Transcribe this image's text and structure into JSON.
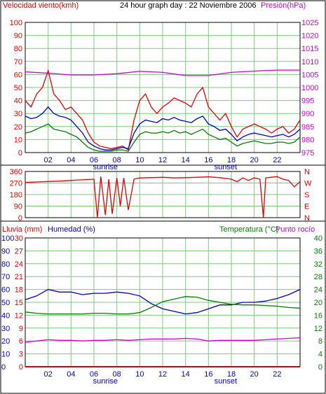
{
  "header": {
    "title": "24 hour graph day : 22 Noviembre 2006",
    "wind_label": "Velocidad viento(kmh)",
    "pressure_label": "Presión(hPa)"
  },
  "bottom_header": {
    "rain_label": "Lluvia (mm)",
    "humidity_label": "Humedad (%)",
    "temp_label": "Temperatura (°C)",
    "dew_label": "Punto rocío"
  },
  "colors": {
    "wind": "#e00000",
    "gust": "#0000c0",
    "avg": "#008000",
    "pressure": "#d000d0",
    "humidity": "#0000c0",
    "temperature": "#008000",
    "dew": "#d000d0",
    "rain": "#e00000",
    "grid": "#7ec87e"
  },
  "chart_data": [
    {
      "type": "line",
      "panel": "wind-pressure",
      "x_ticks": [
        "02",
        "04",
        "06",
        "08",
        "10",
        "12",
        "14",
        "16",
        "18",
        "20",
        "22"
      ],
      "x_markers": [
        "sunrise",
        "sunset"
      ],
      "y_left_ticks": [
        "0",
        "10",
        "20",
        "30",
        "40",
        "50",
        "60",
        "70",
        "80",
        "90",
        "100"
      ],
      "y_right_ticks": [
        "975",
        "980",
        "985",
        "990",
        "995",
        "1000",
        "1005",
        "1010",
        "1015",
        "1020",
        "1025"
      ],
      "y_left_range": [
        0,
        100
      ],
      "y_right_range": [
        975,
        1025
      ],
      "series": [
        {
          "key": "wind",
          "axis": "left",
          "x": [
            0,
            0.5,
            1,
            1.5,
            2,
            2.5,
            3,
            3.5,
            4,
            4.5,
            5,
            5.5,
            6,
            6.5,
            7,
            7.5,
            8,
            8.5,
            9,
            9.5,
            10,
            10.5,
            11,
            11.5,
            12,
            12.5,
            13,
            13.5,
            14,
            14.5,
            15,
            15.5,
            16,
            16.5,
            17,
            17.5,
            18,
            18.5,
            19,
            19.5,
            20,
            20.5,
            21,
            21.5,
            22,
            22.5,
            23,
            23.5,
            24
          ],
          "values": [
            40,
            35,
            45,
            50,
            63,
            45,
            40,
            33,
            35,
            30,
            25,
            15,
            8,
            5,
            4,
            3,
            4,
            5,
            2,
            25,
            40,
            45,
            35,
            30,
            35,
            38,
            42,
            40,
            38,
            35,
            45,
            50,
            35,
            30,
            25,
            30,
            20,
            12,
            18,
            20,
            22,
            20,
            18,
            15,
            18,
            20,
            15,
            18,
            25
          ]
        },
        {
          "key": "gust",
          "axis": "left",
          "x": [
            0,
            0.5,
            1,
            1.5,
            2,
            2.5,
            3,
            3.5,
            4,
            4.5,
            5,
            5.5,
            6,
            6.5,
            7,
            7.5,
            8,
            8.5,
            9,
            9.5,
            10,
            10.5,
            11,
            11.5,
            12,
            12.5,
            13,
            13.5,
            14,
            14.5,
            15,
            15.5,
            16,
            16.5,
            17,
            17.5,
            18,
            18.5,
            19,
            19.5,
            20,
            20.5,
            21,
            21.5,
            22,
            22.5,
            23,
            23.5,
            24
          ],
          "values": [
            28,
            26,
            27,
            30,
            35,
            30,
            28,
            27,
            25,
            20,
            15,
            8,
            5,
            3,
            2,
            2,
            3,
            4,
            3,
            15,
            22,
            25,
            24,
            23,
            26,
            25,
            27,
            25,
            24,
            23,
            26,
            28,
            22,
            20,
            17,
            18,
            14,
            9,
            12,
            14,
            15,
            14,
            13,
            12,
            13,
            14,
            12,
            14,
            18
          ]
        },
        {
          "key": "avg",
          "axis": "left",
          "x": [
            0,
            0.5,
            1,
            1.5,
            2,
            2.5,
            3,
            3.5,
            4,
            4.5,
            5,
            5.5,
            6,
            6.5,
            7,
            7.5,
            8,
            8.5,
            9,
            9.5,
            10,
            10.5,
            11,
            11.5,
            12,
            12.5,
            13,
            13.5,
            14,
            14.5,
            15,
            15.5,
            16,
            16.5,
            17,
            17.5,
            18,
            18.5,
            19,
            19.5,
            20,
            20.5,
            21,
            21.5,
            22,
            22.5,
            23,
            23.5,
            24
          ],
          "values": [
            15,
            16,
            18,
            20,
            22,
            18,
            17,
            16,
            14,
            12,
            8,
            4,
            2,
            1,
            1,
            1,
            2,
            2,
            1,
            8,
            14,
            16,
            15,
            15,
            16,
            15,
            17,
            15,
            16,
            14,
            16,
            18,
            14,
            12,
            10,
            11,
            8,
            5,
            7,
            8,
            9,
            8,
            7,
            7,
            8,
            8,
            7,
            8,
            12
          ]
        },
        {
          "key": "pressure",
          "axis": "right",
          "x": [
            0,
            2,
            4,
            6,
            8,
            10,
            12,
            14,
            16,
            18,
            20,
            22,
            24
          ],
          "values": [
            1006,
            1005.5,
            1004.8,
            1004.8,
            1005.3,
            1006.2,
            1005.8,
            1004.6,
            1004.6,
            1005.8,
            1006.3,
            1006.7,
            1006.7
          ]
        }
      ]
    },
    {
      "type": "line",
      "panel": "wind-direction",
      "y_left_ticks": [
        "360",
        "270",
        "180",
        "90",
        "0"
      ],
      "y_right_ticks": [
        "N",
        "W",
        "S",
        "E",
        "N"
      ],
      "y_range": [
        0,
        360
      ],
      "series": [
        {
          "key": "wind",
          "x": [
            0,
            1,
            2,
            3,
            4,
            5,
            6,
            6.3,
            6.6,
            7,
            7.3,
            7.6,
            8,
            8.3,
            8.6,
            9,
            9.5,
            10,
            11,
            12,
            13,
            14,
            15,
            16,
            17,
            18,
            18.5,
            19,
            19.5,
            20,
            20.5,
            20.8,
            21,
            22,
            22.5,
            23,
            23.5,
            24
          ],
          "values": [
            275,
            278,
            282,
            285,
            290,
            295,
            300,
            0,
            320,
            20,
            300,
            30,
            310,
            90,
            310,
            60,
            300,
            310,
            312,
            315,
            310,
            312,
            315,
            318,
            312,
            300,
            280,
            310,
            290,
            310,
            300,
            0,
            310,
            320,
            300,
            290,
            240,
            280
          ]
        }
      ]
    },
    {
      "type": "line",
      "panel": "humidity-temperature",
      "x_ticks": [
        "02",
        "04",
        "06",
        "08",
        "10",
        "12",
        "14",
        "16",
        "18",
        "20",
        "22"
      ],
      "x_markers": [
        "sunrise",
        "sunset"
      ],
      "y_rain_ticks": [
        "0",
        "3",
        "6",
        "9",
        "12",
        "15",
        "18",
        "21",
        "24",
        "27",
        "30"
      ],
      "y_humidity_ticks": [
        "0",
        "10",
        "20",
        "30",
        "40",
        "50",
        "60",
        "70",
        "80",
        "90",
        "100"
      ],
      "y_temp_ticks": [
        "0",
        "4",
        "8",
        "12",
        "16",
        "20",
        "24",
        "28",
        "32",
        "36",
        "40"
      ],
      "series": [
        {
          "key": "humidity",
          "axis": "humidity",
          "x": [
            0,
            1,
            2,
            3,
            4,
            5,
            6,
            7,
            8,
            9,
            10,
            11,
            12,
            13,
            14,
            15,
            16,
            17,
            18,
            19,
            20,
            21,
            22,
            23,
            24
          ],
          "values": [
            52,
            55,
            60,
            58,
            58,
            56,
            57,
            57,
            58,
            57,
            55,
            49,
            45,
            43,
            41,
            42,
            45,
            48,
            48,
            50,
            50,
            51,
            53,
            56,
            60
          ]
        },
        {
          "key": "temperature",
          "axis": "temp",
          "x": [
            0,
            1,
            2,
            3,
            4,
            5,
            6,
            7,
            8,
            9,
            10,
            11,
            12,
            13,
            14,
            15,
            16,
            17,
            18,
            19,
            20,
            21,
            22,
            23,
            24
          ],
          "values": [
            17,
            16.6,
            16.4,
            16.4,
            16.4,
            16.4,
            16.6,
            16.6,
            16.4,
            16.4,
            16.8,
            18.4,
            20.2,
            21,
            21.8,
            21.6,
            20.6,
            20,
            19.4,
            19.2,
            19.2,
            19,
            18.8,
            18.4,
            18.2
          ]
        },
        {
          "key": "dew",
          "axis": "temp",
          "x": [
            0,
            1,
            2,
            3,
            4,
            5,
            6,
            7,
            8,
            9,
            10,
            11,
            12,
            13,
            14,
            15,
            16,
            17,
            18,
            19,
            20,
            21,
            22,
            23,
            24
          ],
          "values": [
            7.6,
            8,
            8.4,
            8.2,
            8.2,
            8,
            8.2,
            8.2,
            8.4,
            8.2,
            8.4,
            8.6,
            8.6,
            8.6,
            8.8,
            8.6,
            8,
            8.2,
            8.2,
            8.2,
            8.2,
            8.4,
            8.6,
            8.8,
            9
          ]
        },
        {
          "key": "rain",
          "axis": "rain",
          "x": [
            0,
            24
          ],
          "values": [
            0,
            0
          ]
        }
      ]
    }
  ]
}
